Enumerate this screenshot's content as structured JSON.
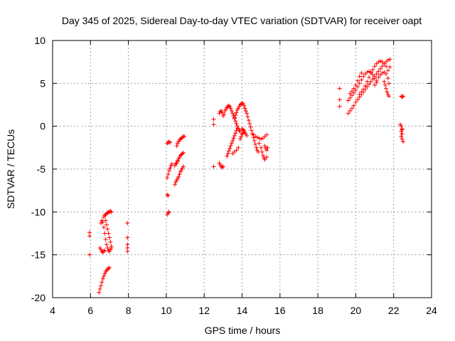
{
  "chart_data": {
    "type": "scatter",
    "title": "Day 345 of 2025, Sidereal Day-to-day VTEC variation (SDTVAR) for receiver oapt",
    "xlabel": "GPS time / hours",
    "ylabel": "SDTVAR / TECUs",
    "xlim": [
      4,
      24
    ],
    "ylim": [
      -20,
      10
    ],
    "xticks": [
      "4",
      "6",
      "8",
      "10",
      "12",
      "14",
      "16",
      "18",
      "20",
      "22",
      "24"
    ],
    "yticks": [
      "-20",
      "-15",
      "-10",
      "-5",
      "0",
      "5",
      "10"
    ],
    "grid": true,
    "marker": "+",
    "marker_color": "#ff0000",
    "series": [
      {
        "name": "SDTVAR",
        "points": [
          [
            5.95,
            -12.4
          ],
          [
            5.95,
            -12.8
          ],
          [
            5.95,
            -15.0
          ],
          [
            6.45,
            -19.4
          ],
          [
            6.5,
            -19.0
          ],
          [
            6.55,
            -18.6
          ],
          [
            6.6,
            -18.2
          ],
          [
            6.65,
            -17.8
          ],
          [
            6.7,
            -17.5
          ],
          [
            6.75,
            -17.2
          ],
          [
            6.8,
            -17.0
          ],
          [
            6.85,
            -16.8
          ],
          [
            6.9,
            -16.7
          ],
          [
            6.95,
            -16.6
          ],
          [
            7.0,
            -16.5
          ],
          [
            6.5,
            -14.2
          ],
          [
            6.55,
            -14.4
          ],
          [
            6.6,
            -14.6
          ],
          [
            6.65,
            -14.7
          ],
          [
            6.7,
            -14.6
          ],
          [
            6.75,
            -14.5
          ],
          [
            6.55,
            -11.3
          ],
          [
            6.6,
            -11.0
          ],
          [
            6.65,
            -11.2
          ],
          [
            6.7,
            -11.8
          ],
          [
            6.75,
            -12.5
          ],
          [
            6.8,
            -13.2
          ],
          [
            6.85,
            -13.8
          ],
          [
            6.9,
            -14.2
          ],
          [
            6.95,
            -14.5
          ],
          [
            7.0,
            -14.6
          ],
          [
            7.05,
            -14.4
          ],
          [
            7.1,
            -14.2
          ],
          [
            6.7,
            -10.6
          ],
          [
            6.75,
            -10.4
          ],
          [
            6.8,
            -10.3
          ],
          [
            6.85,
            -10.2
          ],
          [
            6.9,
            -10.1
          ],
          [
            6.95,
            -10.0
          ],
          [
            7.0,
            -10.0
          ],
          [
            7.05,
            -9.9
          ],
          [
            7.1,
            -10.0
          ],
          [
            6.8,
            -11.0
          ],
          [
            6.85,
            -11.5
          ],
          [
            6.9,
            -12.0
          ],
          [
            6.95,
            -12.5
          ],
          [
            7.0,
            -13.0
          ],
          [
            7.05,
            -13.5
          ],
          [
            7.1,
            -14.0
          ],
          [
            7.95,
            -11.3
          ],
          [
            7.95,
            -13.0
          ],
          [
            7.95,
            -13.8
          ],
          [
            7.95,
            -14.2
          ],
          [
            7.95,
            -14.6
          ],
          [
            10.05,
            -10.3
          ],
          [
            10.1,
            -10.1
          ],
          [
            10.15,
            -10.0
          ],
          [
            10.05,
            -8.0
          ],
          [
            10.1,
            -8.1
          ],
          [
            10.05,
            -6.0
          ],
          [
            10.1,
            -5.6
          ],
          [
            10.15,
            -5.2
          ],
          [
            10.2,
            -4.9
          ],
          [
            10.25,
            -4.6
          ],
          [
            10.3,
            -4.4
          ],
          [
            10.05,
            -2.0
          ],
          [
            10.1,
            -1.9
          ],
          [
            10.15,
            -1.8
          ],
          [
            10.2,
            -1.9
          ],
          [
            10.45,
            -6.8
          ],
          [
            10.5,
            -6.5
          ],
          [
            10.55,
            -6.3
          ],
          [
            10.6,
            -6.1
          ],
          [
            10.65,
            -5.9
          ],
          [
            10.7,
            -5.6
          ],
          [
            10.75,
            -5.3
          ],
          [
            10.8,
            -5.1
          ],
          [
            10.85,
            -4.9
          ],
          [
            10.9,
            -4.7
          ],
          [
            10.45,
            -4.6
          ],
          [
            10.5,
            -4.4
          ],
          [
            10.55,
            -4.3
          ],
          [
            10.6,
            -4.1
          ],
          [
            10.6,
            -4.0
          ],
          [
            10.65,
            -3.8
          ],
          [
            10.7,
            -3.6
          ],
          [
            10.75,
            -3.4
          ],
          [
            10.8,
            -3.3
          ],
          [
            10.85,
            -3.2
          ],
          [
            10.9,
            -3.1
          ],
          [
            10.55,
            -2.3
          ],
          [
            10.6,
            -2.0
          ],
          [
            10.65,
            -1.8
          ],
          [
            10.7,
            -1.6
          ],
          [
            10.75,
            -1.5
          ],
          [
            10.8,
            -1.4
          ],
          [
            10.85,
            -1.3
          ],
          [
            10.9,
            -1.2
          ],
          [
            10.95,
            -1.2
          ],
          [
            12.5,
            -4.7
          ],
          [
            12.5,
            0.2
          ],
          [
            12.5,
            0.8
          ],
          [
            12.8,
            -4.3
          ],
          [
            12.85,
            -4.5
          ],
          [
            12.9,
            -4.7
          ],
          [
            12.95,
            -4.8
          ],
          [
            13.0,
            -4.7
          ],
          [
            12.8,
            1.5
          ],
          [
            12.85,
            1.7
          ],
          [
            12.9,
            1.8
          ],
          [
            12.95,
            1.6
          ],
          [
            13.0,
            1.2
          ],
          [
            13.05,
            1.4
          ],
          [
            13.1,
            1.8
          ],
          [
            13.15,
            2.0
          ],
          [
            13.2,
            2.2
          ],
          [
            13.25,
            2.3
          ],
          [
            13.3,
            2.4
          ],
          [
            13.35,
            2.3
          ],
          [
            13.4,
            2.1
          ],
          [
            13.45,
            1.8
          ],
          [
            13.5,
            1.5
          ],
          [
            13.55,
            1.2
          ],
          [
            13.6,
            0.9
          ],
          [
            13.65,
            0.6
          ],
          [
            13.7,
            0.3
          ],
          [
            13.75,
            0.0
          ],
          [
            13.8,
            -0.3
          ],
          [
            13.85,
            -0.5
          ],
          [
            13.9,
            -0.6
          ],
          [
            13.2,
            -3.5
          ],
          [
            13.25,
            -3.2
          ],
          [
            13.3,
            -2.9
          ],
          [
            13.35,
            -2.6
          ],
          [
            13.4,
            -2.3
          ],
          [
            13.45,
            -2.0
          ],
          [
            13.5,
            -1.7
          ],
          [
            13.55,
            -1.4
          ],
          [
            13.6,
            -1.1
          ],
          [
            13.65,
            -0.8
          ],
          [
            13.7,
            -0.5
          ],
          [
            13.75,
            -0.2
          ],
          [
            13.6,
            1.0
          ],
          [
            13.65,
            1.3
          ],
          [
            13.7,
            1.6
          ],
          [
            13.75,
            1.9
          ],
          [
            13.8,
            2.1
          ],
          [
            13.85,
            2.3
          ],
          [
            13.9,
            2.5
          ],
          [
            13.95,
            2.6
          ],
          [
            14.0,
            2.7
          ],
          [
            14.05,
            2.6
          ],
          [
            14.1,
            2.4
          ],
          [
            14.15,
            2.1
          ],
          [
            14.2,
            1.8
          ],
          [
            14.25,
            1.5
          ],
          [
            14.3,
            1.1
          ],
          [
            14.35,
            0.7
          ],
          [
            14.4,
            0.3
          ],
          [
            14.45,
            -0.1
          ],
          [
            14.5,
            -0.5
          ],
          [
            14.55,
            -0.9
          ],
          [
            14.6,
            -1.3
          ],
          [
            14.65,
            -1.7
          ],
          [
            14.7,
            -2.1
          ],
          [
            14.75,
            -2.5
          ],
          [
            14.8,
            -2.8
          ],
          [
            14.85,
            -3.0
          ],
          [
            14.0,
            -0.3
          ],
          [
            14.05,
            -0.4
          ],
          [
            14.1,
            -0.5
          ],
          [
            14.15,
            -0.7
          ],
          [
            14.2,
            -0.9
          ],
          [
            14.25,
            -1.1
          ],
          [
            13.9,
            -1.5
          ],
          [
            13.95,
            -1.2
          ],
          [
            14.0,
            -0.9
          ],
          [
            14.05,
            -0.8
          ],
          [
            14.1,
            -0.7
          ],
          [
            13.8,
            -2.5
          ],
          [
            13.7,
            -2.8
          ],
          [
            13.6,
            -3.0
          ],
          [
            13.5,
            -3.2
          ],
          [
            14.6,
            -1.0
          ],
          [
            14.7,
            -1.2
          ],
          [
            14.8,
            -1.3
          ],
          [
            14.9,
            -1.4
          ],
          [
            15.0,
            -1.5
          ],
          [
            15.1,
            -1.4
          ],
          [
            15.2,
            -1.2
          ],
          [
            15.3,
            -1.0
          ],
          [
            14.9,
            -2.0
          ],
          [
            15.0,
            -2.5
          ],
          [
            15.05,
            -3.0
          ],
          [
            15.1,
            -3.4
          ],
          [
            15.15,
            -3.7
          ],
          [
            15.2,
            -3.9
          ],
          [
            15.3,
            -3.6
          ],
          [
            15.2,
            -2.3
          ],
          [
            15.25,
            -2.6
          ],
          [
            15.3,
            -2.8
          ],
          [
            15.35,
            -2.5
          ],
          [
            19.15,
            4.4
          ],
          [
            19.15,
            3.1
          ],
          [
            19.15,
            2.3
          ],
          [
            19.6,
            1.5
          ],
          [
            19.7,
            1.8
          ],
          [
            19.8,
            2.1
          ],
          [
            19.9,
            2.4
          ],
          [
            20.0,
            2.8
          ],
          [
            20.1,
            3.1
          ],
          [
            20.2,
            3.4
          ],
          [
            20.3,
            3.7
          ],
          [
            20.4,
            4.0
          ],
          [
            20.5,
            4.3
          ],
          [
            20.6,
            4.6
          ],
          [
            20.7,
            4.9
          ],
          [
            20.8,
            5.2
          ],
          [
            20.9,
            5.5
          ],
          [
            21.0,
            5.8
          ],
          [
            21.1,
            6.1
          ],
          [
            21.2,
            6.4
          ],
          [
            21.3,
            6.7
          ],
          [
            21.4,
            7.0
          ],
          [
            21.5,
            7.3
          ],
          [
            21.6,
            7.5
          ],
          [
            21.7,
            7.7
          ],
          [
            19.6,
            3.0
          ],
          [
            19.7,
            3.3
          ],
          [
            19.8,
            3.6
          ],
          [
            19.9,
            3.9
          ],
          [
            20.0,
            4.2
          ],
          [
            20.1,
            4.6
          ],
          [
            20.2,
            5.0
          ],
          [
            20.3,
            5.4
          ],
          [
            20.4,
            5.8
          ],
          [
            20.5,
            6.1
          ],
          [
            20.6,
            6.3
          ],
          [
            20.7,
            6.4
          ],
          [
            20.8,
            6.3
          ],
          [
            20.9,
            6.0
          ],
          [
            21.0,
            5.6
          ],
          [
            21.1,
            5.1
          ],
          [
            19.7,
            3.8
          ],
          [
            19.8,
            4.1
          ],
          [
            19.9,
            4.4
          ],
          [
            20.0,
            4.8
          ],
          [
            20.1,
            5.3
          ],
          [
            20.2,
            5.8
          ],
          [
            20.3,
            6.2
          ],
          [
            20.2,
            3.7
          ],
          [
            20.3,
            4.0
          ],
          [
            20.4,
            4.3
          ],
          [
            20.5,
            4.7
          ],
          [
            20.6,
            5.2
          ],
          [
            20.7,
            5.7
          ],
          [
            20.8,
            6.2
          ],
          [
            20.9,
            6.6
          ],
          [
            21.0,
            7.0
          ],
          [
            21.1,
            7.3
          ],
          [
            21.2,
            7.5
          ],
          [
            21.3,
            7.6
          ],
          [
            21.4,
            7.5
          ],
          [
            21.5,
            7.3
          ],
          [
            21.6,
            7.0
          ],
          [
            21.7,
            6.5
          ],
          [
            21.0,
            4.8
          ],
          [
            21.1,
            5.3
          ],
          [
            21.2,
            5.7
          ],
          [
            21.3,
            6.0
          ],
          [
            21.4,
            6.2
          ],
          [
            21.5,
            6.3
          ],
          [
            21.6,
            6.1
          ],
          [
            21.7,
            5.6
          ],
          [
            21.75,
            5.0
          ],
          [
            21.5,
            5.2
          ],
          [
            21.55,
            4.8
          ],
          [
            21.6,
            4.4
          ],
          [
            21.65,
            4.0
          ],
          [
            21.7,
            3.7
          ],
          [
            21.75,
            3.5
          ],
          [
            21.8,
            7.8
          ],
          [
            21.8,
            6.9
          ],
          [
            22.4,
            3.5
          ],
          [
            22.45,
            3.4
          ],
          [
            22.5,
            3.5
          ],
          [
            22.35,
            0.2
          ],
          [
            22.4,
            0.0
          ],
          [
            22.45,
            -0.3
          ],
          [
            22.4,
            -0.6
          ],
          [
            22.45,
            -0.9
          ],
          [
            22.4,
            -1.2
          ],
          [
            22.45,
            -1.5
          ],
          [
            22.5,
            -1.8
          ],
          [
            22.45,
            -0.4
          ]
        ]
      }
    ]
  }
}
